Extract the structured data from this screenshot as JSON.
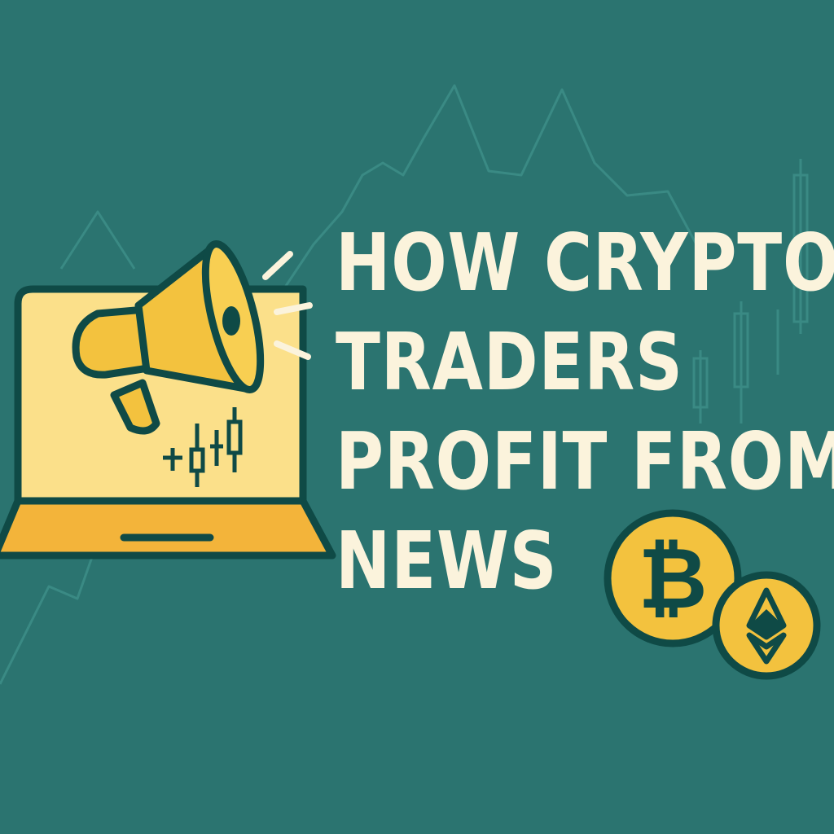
{
  "headline": {
    "lines": [
      "HOW CRYPTO",
      "TRADERS",
      "PROFIT FROM",
      "NEWS"
    ]
  },
  "colors": {
    "background": "#2b7470",
    "headline_text": "#fbf3dc",
    "accent_yellow": "#f3c23e",
    "screen_yellow": "#fbe08a",
    "outline": "#0f4a46",
    "background_chart": "#3a8a84"
  },
  "icons": [
    "laptop-icon",
    "megaphone-icon",
    "candlestick-icon",
    "bitcoin-coin-icon",
    "ethereum-coin-icon"
  ]
}
